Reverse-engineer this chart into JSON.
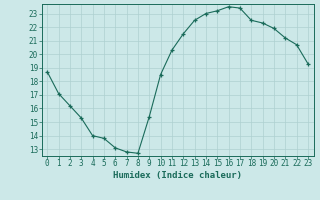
{
  "x": [
    0,
    1,
    2,
    3,
    4,
    5,
    6,
    7,
    8,
    9,
    10,
    11,
    12,
    13,
    14,
    15,
    16,
    17,
    18,
    19,
    20,
    21,
    22,
    23
  ],
  "y": [
    18.7,
    17.1,
    16.2,
    15.3,
    14.0,
    13.8,
    13.1,
    12.8,
    12.7,
    15.4,
    18.5,
    20.3,
    21.5,
    22.5,
    23.0,
    23.2,
    23.5,
    23.4,
    22.5,
    22.3,
    21.9,
    21.2,
    20.7,
    19.3
  ],
  "line_color": "#1a6b5a",
  "marker": "+",
  "bg_color": "#cce8e8",
  "grid_color": "#aed0d0",
  "axis_color": "#1a6b5a",
  "xlabel": "Humidex (Indice chaleur)",
  "xlim": [
    -0.5,
    23.5
  ],
  "ylim": [
    12.5,
    23.7
  ],
  "yticks": [
    13,
    14,
    15,
    16,
    17,
    18,
    19,
    20,
    21,
    22,
    23
  ],
  "xticks": [
    0,
    1,
    2,
    3,
    4,
    5,
    6,
    7,
    8,
    9,
    10,
    11,
    12,
    13,
    14,
    15,
    16,
    17,
    18,
    19,
    20,
    21,
    22,
    23
  ],
  "tick_fontsize": 5.5,
  "xlabel_fontsize": 6.5
}
